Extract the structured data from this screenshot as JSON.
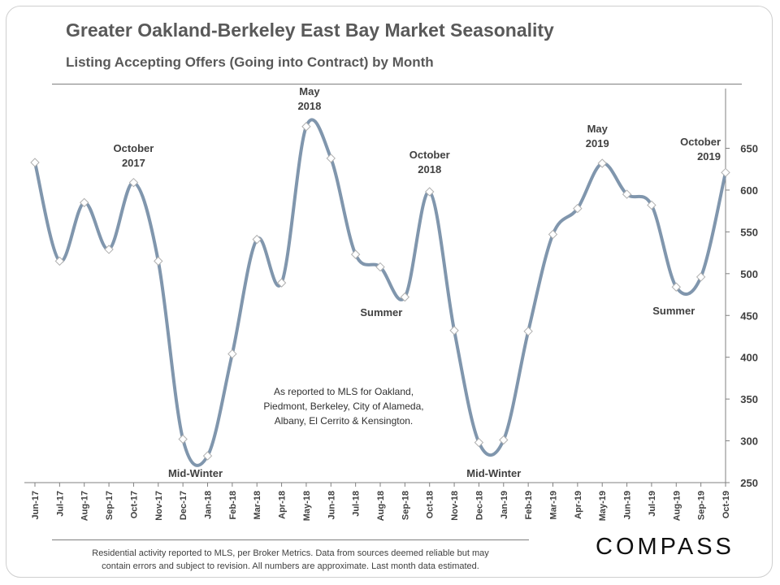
{
  "header": {
    "title": "Greater Oakland-Berkeley East Bay Market Seasonality",
    "subtitle": "Listing Accepting Offers (Going into Contract) by Month"
  },
  "footer": {
    "note_line1": "Residential activity reported to MLS, per Broker Metrics. Data from sources deemed reliable but may",
    "note_line2": "contain errors and subject to revision. All numbers are approximate. Last month data estimated.",
    "logo_text": "COMPASS"
  },
  "colors": {
    "line": "#8096AD",
    "marker_fill": "#ffffff",
    "marker_stroke": "#b0b0b0",
    "text": "#404040"
  },
  "chart_data": {
    "type": "line",
    "title": "Greater Oakland-Berkeley East Bay Market Seasonality",
    "subtitle": "Listing Accepting Offers (Going into Contract) by Month",
    "categories": [
      "Jun-17",
      "Jul-17",
      "Aug-17",
      "Sep-17",
      "Oct-17",
      "Nov-17",
      "Dec-17",
      "Jan-18",
      "Feb-18",
      "Mar-18",
      "Apr-18",
      "May-18",
      "Jun-18",
      "Jul-18",
      "Aug-18",
      "Sep-18",
      "Oct-18",
      "Nov-18",
      "Dec-18",
      "Jan-19",
      "Feb-19",
      "Mar-19",
      "Apr-19",
      "May-19",
      "Jun-19",
      "Jul-19",
      "Aug-19",
      "Sep-19",
      "Oct-19"
    ],
    "values": [
      633,
      515,
      585,
      529,
      609,
      515,
      302,
      282,
      404,
      541,
      489,
      676,
      638,
      523,
      508,
      472,
      598,
      432,
      298,
      301,
      431,
      547,
      578,
      632,
      595,
      582,
      484,
      496,
      621
    ],
    "ylim": [
      250,
      700
    ],
    "yticks": [
      250,
      300,
      350,
      400,
      450,
      500,
      550,
      600,
      650
    ],
    "y_axis_side": "right",
    "grid": false,
    "annotations": [
      {
        "lines": [
          "October",
          "2017"
        ],
        "category": "Oct-17"
      },
      {
        "lines": [
          "May",
          "2018"
        ],
        "category": "May-18"
      },
      {
        "lines": [
          "October",
          "2018"
        ],
        "category": "Oct-18"
      },
      {
        "lines": [
          "May",
          "2019"
        ],
        "category": "May-19"
      },
      {
        "lines": [
          "October",
          "2019"
        ],
        "category": "Oct-19"
      },
      {
        "lines": [
          "Summer"
        ],
        "category": "Sep-18"
      },
      {
        "lines": [
          "Summer"
        ],
        "category": "Aug-19"
      },
      {
        "lines": [
          "Mid-Winter"
        ],
        "category": "Jan-18"
      },
      {
        "lines": [
          "Mid-Winter"
        ],
        "category": "Jan-19"
      }
    ],
    "note": [
      "As reported to MLS for Oakland,",
      "Piedmont, Berkeley, City of Alameda,",
      "Albany, El Cerrito & Kensington."
    ]
  }
}
